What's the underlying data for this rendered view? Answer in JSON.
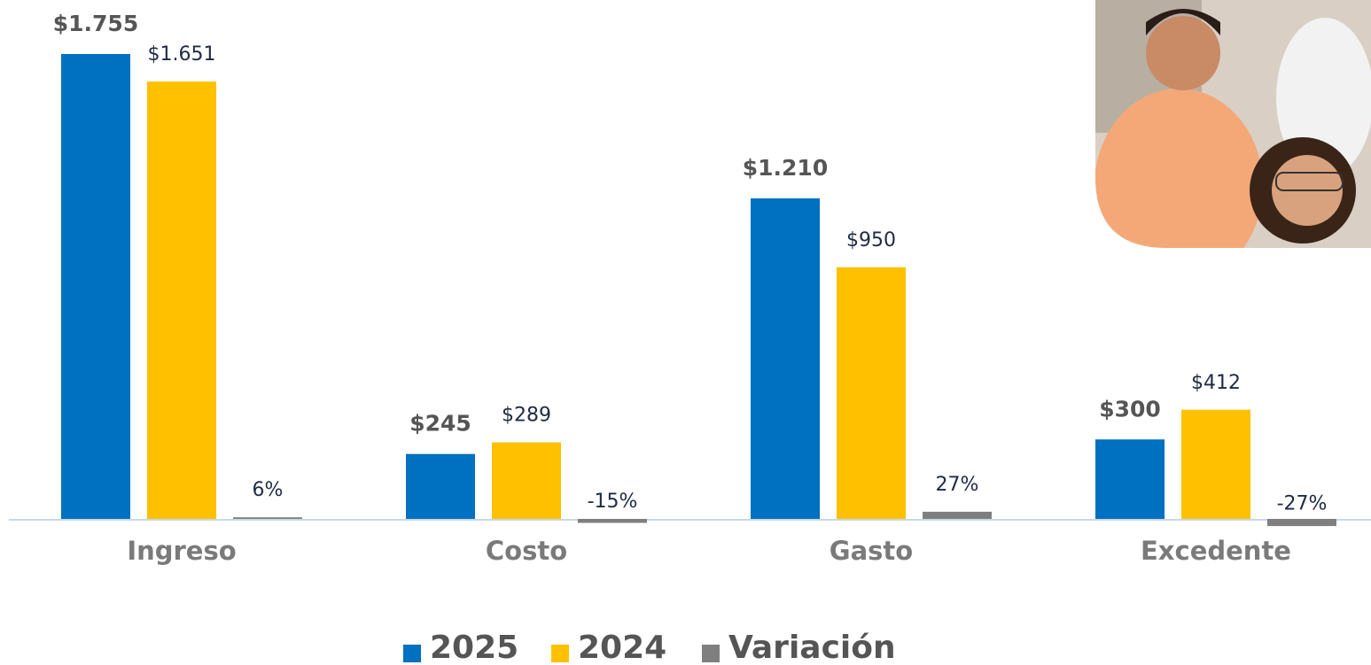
{
  "chart_data": {
    "type": "bar",
    "categories": [
      "Ingreso",
      "Costo",
      "Gasto",
      "Excedente"
    ],
    "series": [
      {
        "name": "2025",
        "color": "#0070c0",
        "values": [
          1755,
          245,
          1210,
          300
        ],
        "value_labels": [
          "$1.755",
          "$245",
          "$1.210",
          "$300"
        ]
      },
      {
        "name": "2024",
        "color": "#ffc000",
        "values": [
          1651,
          289,
          950,
          412
        ],
        "value_labels": [
          "$1.651",
          "$289",
          "$950",
          "$412"
        ]
      },
      {
        "name": "Variación",
        "color": "#7f7f7f",
        "values": [
          6,
          -15,
          27,
          -27
        ],
        "value_labels": [
          "6%",
          "-15%",
          "27%",
          "-27%"
        ]
      }
    ]
  }
}
